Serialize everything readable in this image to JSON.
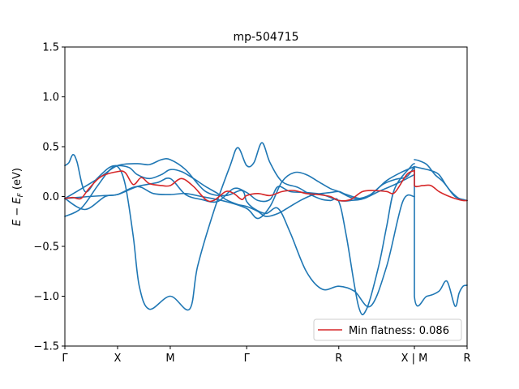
{
  "chart_data": {
    "type": "line",
    "title": "mp-504715",
    "xlabel": "",
    "ylabel_main": "E − E",
    "ylabel_sub": "F",
    "ylabel_unit": " (eV)",
    "xlim": [
      0,
      1
    ],
    "ylim": [
      -1.5,
      1.5
    ],
    "y_ticks": [
      -1.5,
      -1.0,
      -0.5,
      0.0,
      0.5,
      1.0,
      1.5
    ],
    "y_tick_labels": [
      "−1.5",
      "−1.0",
      "−0.5",
      "0.0",
      "0.5",
      "1.0",
      "1.5"
    ],
    "x_ticks": [
      {
        "x": 0.0,
        "label": "Γ"
      },
      {
        "x": 0.131,
        "label": "X"
      },
      {
        "x": 0.262,
        "label": "M"
      },
      {
        "x": 0.452,
        "label": "Γ"
      },
      {
        "x": 0.681,
        "label": "R"
      },
      {
        "x": 0.869,
        "label": "X | M"
      },
      {
        "x": 1.0,
        "label": "R"
      }
    ],
    "grid": false,
    "legend": {
      "placement": "lower-right",
      "entries": [
        "Min flatness: 0.086"
      ]
    },
    "series": [
      {
        "color": "#1f77b4",
        "x": [
          0.0,
          0.01,
          0.02,
          0.03,
          0.05,
          0.08,
          0.11,
          0.131,
          0.16,
          0.18,
          0.21,
          0.24,
          0.262,
          0.29,
          0.32,
          0.35,
          0.38,
          0.4,
          0.43,
          0.452,
          0.48,
          0.5,
          0.53,
          0.56,
          0.59,
          0.62,
          0.66,
          0.681,
          0.7,
          0.74,
          0.78,
          0.82,
          0.85,
          0.869
        ],
        "y": [
          0.31,
          0.34,
          0.42,
          0.35,
          0.05,
          0.18,
          0.29,
          0.31,
          0.29,
          0.22,
          0.18,
          0.22,
          0.27,
          0.25,
          0.18,
          0.1,
          0.03,
          -0.03,
          -0.08,
          -0.1,
          -0.15,
          -0.2,
          -0.17,
          -0.1,
          -0.03,
          0.02,
          0.04,
          0.05,
          0.02,
          -0.02,
          0.05,
          0.12,
          0.18,
          0.22
        ]
      },
      {
        "color": "#1f77b4",
        "x": [
          0.0,
          0.04,
          0.08,
          0.11,
          0.131,
          0.15,
          0.17,
          0.185,
          0.21,
          0.262,
          0.31,
          0.33,
          0.37,
          0.41,
          0.43,
          0.452,
          0.47,
          0.49,
          0.51,
          0.54,
          0.58,
          0.61,
          0.64,
          0.66,
          0.681,
          0.7,
          0.73,
          0.75,
          0.78,
          0.8,
          0.82,
          0.86,
          0.869
        ],
        "y": [
          -0.2,
          -0.12,
          0.1,
          0.26,
          0.3,
          0.12,
          -0.4,
          -0.9,
          -1.13,
          -1.0,
          -1.13,
          -0.7,
          -0.15,
          0.3,
          0.49,
          0.31,
          0.34,
          0.54,
          0.34,
          0.15,
          0.09,
          0.02,
          -0.03,
          -0.04,
          -0.05,
          -0.4,
          -1.1,
          -1.13,
          -0.7,
          -0.3,
          0.08,
          0.3,
          0.33
        ]
      },
      {
        "color": "#1f77b4",
        "x": [
          0.0,
          0.03,
          0.06,
          0.1,
          0.131,
          0.18,
          0.23,
          0.262,
          0.3,
          0.34,
          0.38,
          0.42,
          0.452,
          0.48,
          0.51,
          0.53,
          0.56,
          0.6,
          0.64,
          0.681,
          0.71,
          0.75,
          0.79,
          0.82,
          0.85,
          0.869
        ],
        "y": [
          -0.02,
          -0.01,
          0.0,
          0.01,
          0.02,
          0.1,
          0.14,
          0.18,
          0.02,
          -0.03,
          -0.05,
          0.08,
          0.04,
          -0.04,
          -0.03,
          0.1,
          0.05,
          0.04,
          0.02,
          -0.04,
          -0.04,
          -0.01,
          0.12,
          0.17,
          0.2,
          0.3
        ]
      },
      {
        "color": "#1f77b4",
        "x": [
          0.0,
          0.05,
          0.09,
          0.131,
          0.18,
          0.21,
          0.24,
          0.262,
          0.3,
          0.35,
          0.4,
          0.44,
          0.452,
          0.47,
          0.5,
          0.53,
          0.56,
          0.6,
          0.64,
          0.681,
          0.72,
          0.76,
          0.8,
          0.84,
          0.869
        ],
        "y": [
          -0.02,
          0.1,
          0.2,
          0.31,
          0.33,
          0.32,
          0.37,
          0.37,
          0.27,
          0.05,
          0.01,
          0.06,
          -0.05,
          -0.12,
          -0.17,
          -0.12,
          -0.36,
          -0.75,
          -0.93,
          -0.9,
          -0.95,
          -1.1,
          -0.7,
          -0.05,
          0.0
        ]
      },
      {
        "color": "#1f77b4",
        "x": [
          0.0,
          0.05,
          0.1,
          0.131,
          0.18,
          0.22,
          0.262,
          0.3,
          0.34,
          0.4,
          0.452,
          0.48,
          0.51,
          0.54,
          0.57,
          0.6,
          0.63,
          0.66,
          0.681,
          0.72,
          0.76,
          0.8,
          0.84,
          0.869
        ],
        "y": [
          -0.02,
          -0.13,
          0.0,
          0.02,
          0.1,
          0.03,
          0.02,
          0.03,
          0.0,
          -0.05,
          -0.12,
          -0.22,
          -0.1,
          0.15,
          0.24,
          0.22,
          0.15,
          0.08,
          0.05,
          -0.02,
          0.02,
          0.16,
          0.25,
          0.3
        ]
      },
      {
        "color": "#1f77b4",
        "x": [
          0.869,
          0.869,
          0.9,
          0.93,
          0.95,
          0.97,
          0.98,
          0.99,
          1.0
        ],
        "y": [
          0.3,
          -1.0,
          -1.0,
          -0.95,
          -0.85,
          -1.1,
          -0.97,
          -0.9,
          -0.89
        ]
      },
      {
        "color": "#1f77b4",
        "x": [
          0.869,
          0.88,
          0.9,
          0.92,
          0.94,
          0.96,
          0.98,
          1.0
        ],
        "y": [
          0.37,
          0.36,
          0.32,
          0.22,
          0.15,
          0.05,
          -0.02,
          -0.04
        ]
      },
      {
        "color": "#1f77b4",
        "x": [
          0.869,
          0.89,
          0.91,
          0.93,
          0.95,
          0.97,
          0.99,
          1.0
        ],
        "y": [
          0.3,
          0.28,
          0.26,
          0.22,
          0.1,
          0.0,
          -0.03,
          -0.04
        ]
      },
      {
        "color": "#d62728",
        "x": [
          0.0,
          0.02,
          0.04,
          0.06,
          0.09,
          0.131,
          0.15,
          0.17,
          0.19,
          0.21,
          0.24,
          0.262,
          0.29,
          0.32,
          0.35,
          0.37,
          0.4,
          0.42,
          0.44,
          0.452,
          0.48,
          0.51,
          0.54,
          0.57,
          0.6,
          0.63,
          0.66,
          0.681,
          0.71,
          0.74,
          0.77,
          0.8,
          0.82,
          0.85,
          0.869
        ],
        "y": [
          -0.02,
          -0.01,
          -0.02,
          0.08,
          0.2,
          0.25,
          0.24,
          0.12,
          0.19,
          0.13,
          0.11,
          0.11,
          0.18,
          0.1,
          -0.03,
          -0.04,
          0.05,
          0.03,
          -0.03,
          0.01,
          0.03,
          0.01,
          0.05,
          0.06,
          0.03,
          0.02,
          0.0,
          -0.04,
          -0.03,
          0.05,
          0.06,
          0.05,
          0.04,
          0.22,
          0.26
        ]
      },
      {
        "color": "#d62728",
        "x": [
          0.869,
          0.869,
          0.89,
          0.91,
          0.93,
          0.95,
          0.97,
          0.99,
          1.0
        ],
        "y": [
          0.26,
          0.11,
          0.11,
          0.11,
          0.05,
          0.01,
          -0.02,
          -0.04,
          -0.04
        ]
      }
    ]
  }
}
